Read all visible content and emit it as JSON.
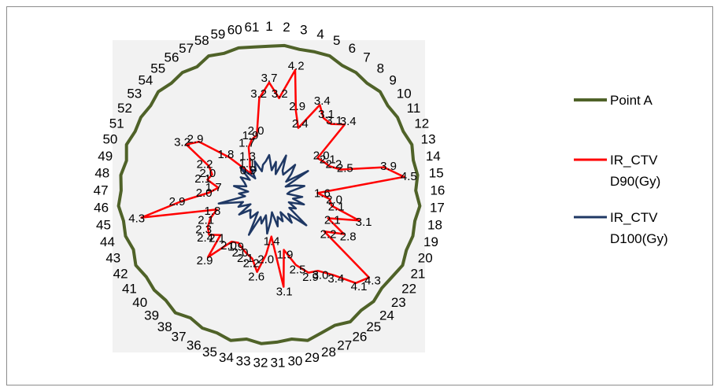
{
  "chart_data": {
    "type": "radar",
    "categories": [
      "1",
      "2",
      "3",
      "4",
      "5",
      "6",
      "7",
      "8",
      "9",
      "10",
      "11",
      "12",
      "13",
      "14",
      "15",
      "16",
      "17",
      "18",
      "19",
      "20",
      "21",
      "22",
      "23",
      "24",
      "25",
      "26",
      "27",
      "28",
      "29",
      "30",
      "31",
      "32",
      "33",
      "34",
      "35",
      "36",
      "37",
      "38",
      "39",
      "40",
      "41",
      "42",
      "43",
      "44",
      "45",
      "46",
      "47",
      "48",
      "49",
      "50",
      "51",
      "52",
      "53",
      "54",
      "55",
      "56",
      "57",
      "58",
      "59",
      "60",
      "61"
    ],
    "rmax": 5,
    "series": [
      {
        "name": "Point A",
        "color": "#4f6228",
        "values": [
          4.9,
          4.95,
          4.9,
          4.95,
          5.0,
          4.9,
          4.95,
          4.9,
          5.0,
          4.9,
          4.95,
          4.9,
          5.0,
          4.9,
          4.95,
          4.85,
          5.0,
          4.9,
          4.95,
          4.9,
          5.0,
          4.9,
          4.85,
          4.95,
          4.9,
          5.0,
          4.85,
          4.9,
          5.0,
          4.85,
          4.9,
          4.95,
          4.85,
          5.0,
          4.9,
          4.95,
          4.85,
          5.0,
          4.9,
          4.95,
          4.9,
          5.0,
          4.85,
          4.95,
          4.9,
          5.0,
          4.9,
          4.95,
          4.85,
          5.0,
          4.9,
          4.95,
          4.9,
          5.0,
          4.9,
          4.95,
          4.85,
          5.0,
          4.9,
          4.95,
          4.9
        ]
      },
      {
        "name": "IR_CTV D90(Gy)",
        "color": "#ff0000",
        "values": [
          3.7,
          3.2,
          4.2,
          2.9,
          2.4,
          3.4,
          3.1,
          3.1,
          3.4,
          2.0,
          2.1,
          2.2,
          2.5,
          3.9,
          4.5,
          1.6,
          2.0,
          2.1,
          3.1,
          2.1,
          2.8,
          2.2,
          4.3,
          4.1,
          3.4,
          3.0,
          2.9,
          2.5,
          1.9,
          3.1,
          1.4,
          2.0,
          2.6,
          2.2,
          2.1,
          2.0,
          1.9,
          2.0,
          2.9,
          2.1,
          2.4,
          2.3,
          2.1,
          1.8,
          4.3,
          2.9,
          2.0,
          1.7,
          2.1,
          2.0,
          2.2,
          3.2,
          2.9,
          1.8,
          0.9,
          1.1,
          1.3,
          1.7,
          1.9,
          2.0,
          3.2
        ],
        "labels": [
          "3.7",
          "3.2",
          "4.2",
          "2.9",
          "2.4",
          "3.4",
          "3.1",
          "3.1",
          "3.4",
          "2.0",
          "2.1",
          "2.2",
          "2.5",
          "3.9",
          "4.5",
          "1.6",
          "2.0",
          "2.1",
          "3.1",
          "2.1",
          "2.8",
          "2.2",
          "4.3",
          "4.1",
          "3.4",
          "3.0",
          "2.9",
          "2.5",
          "1.9",
          "3.1",
          "1.4",
          "2.0",
          "2.6",
          "2.2",
          "2.1",
          "2.0",
          "1.9",
          "2.0",
          "2.9",
          "2.1",
          "2.4",
          "2.3",
          "2.1",
          "1.8",
          "4.3",
          "2.9",
          "2.0",
          "1.7",
          "2.1",
          "2.0",
          "2.2",
          "3.2",
          "2.9",
          "1.8",
          "0.9",
          "1.1",
          "1.3",
          "1.7",
          "1.9",
          "2.0",
          "3.2"
        ]
      },
      {
        "name": "IR_CTV D100(Gy)",
        "color": "#1f3864",
        "values": [
          1.3,
          0.8,
          1.1,
          0.7,
          1.4,
          0.9,
          0.8,
          1.3,
          1.0,
          0.7,
          1.5,
          0.6,
          0.9,
          1.2,
          0.7,
          0.6,
          1.1,
          0.8,
          1.2,
          0.7,
          1.0,
          0.8,
          1.6,
          0.9,
          1.2,
          0.7,
          1.0,
          0.8,
          1.1,
          0.6,
          0.9,
          1.3,
          0.7,
          1.0,
          0.8,
          1.5,
          0.7,
          1.0,
          0.9,
          0.8,
          1.2,
          0.7,
          1.1,
          0.9,
          1.7,
          0.8,
          1.0,
          0.7,
          1.2,
          0.8,
          0.9,
          1.1,
          0.8,
          1.3,
          0.7,
          1.0,
          0.9,
          1.2,
          0.8,
          1.0,
          1.1
        ]
      }
    ],
    "legend": {
      "position": "right",
      "entries": [
        {
          "lines": [
            "Point A"
          ],
          "color": "#4f6228"
        },
        {
          "lines": [
            "IR_CTV",
            "D90(Gy)"
          ],
          "color": "#ff0000"
        },
        {
          "lines": [
            "IR_CTV",
            "D100(Gy)"
          ],
          "color": "#1f3864"
        }
      ]
    }
  }
}
